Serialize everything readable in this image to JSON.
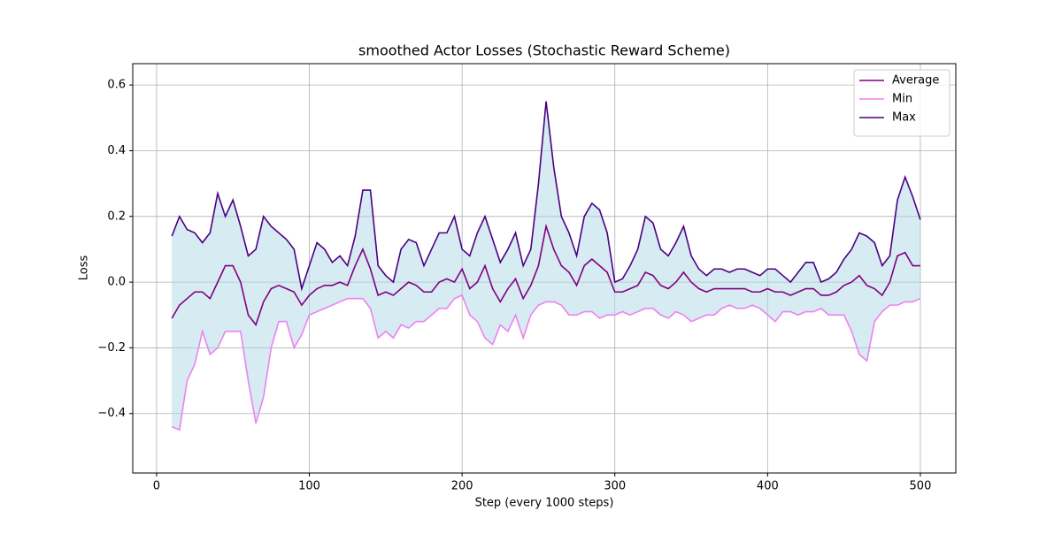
{
  "chart_data": {
    "type": "line",
    "title": "smoothed Actor Losses (Stochastic Reward Scheme)",
    "x_label": "Step (every 1000 steps)",
    "y_label": "Loss",
    "x": [
      10,
      15,
      20,
      25,
      30,
      35,
      40,
      45,
      50,
      55,
      60,
      65,
      70,
      75,
      80,
      85,
      90,
      95,
      100,
      105,
      110,
      115,
      120,
      125,
      130,
      135,
      140,
      145,
      150,
      155,
      160,
      165,
      170,
      175,
      180,
      185,
      190,
      195,
      200,
      205,
      210,
      215,
      220,
      225,
      230,
      235,
      240,
      245,
      250,
      255,
      260,
      265,
      270,
      275,
      280,
      285,
      290,
      295,
      300,
      305,
      310,
      315,
      320,
      325,
      330,
      335,
      340,
      345,
      350,
      355,
      360,
      365,
      370,
      375,
      380,
      385,
      390,
      395,
      400,
      405,
      410,
      415,
      420,
      425,
      430,
      435,
      440,
      445,
      450,
      455,
      460,
      465,
      470,
      475,
      480,
      485,
      490,
      495,
      500
    ],
    "series": [
      {
        "name": "Average",
        "color": "#800080",
        "values": [
          -0.11,
          -0.07,
          -0.05,
          -0.03,
          -0.03,
          -0.05,
          0.0,
          0.05,
          0.05,
          0.0,
          -0.1,
          -0.13,
          -0.06,
          -0.02,
          -0.01,
          -0.02,
          -0.03,
          -0.07,
          -0.04,
          -0.02,
          -0.01,
          -0.01,
          0.0,
          -0.01,
          0.05,
          0.1,
          0.04,
          -0.04,
          -0.03,
          -0.04,
          -0.02,
          0.0,
          -0.01,
          -0.03,
          -0.03,
          0.0,
          0.01,
          0.0,
          0.04,
          -0.02,
          0.0,
          0.05,
          -0.02,
          -0.06,
          -0.02,
          0.01,
          -0.05,
          -0.01,
          0.05,
          0.17,
          0.1,
          0.05,
          0.03,
          -0.01,
          0.05,
          0.07,
          0.05,
          0.03,
          -0.03,
          -0.03,
          -0.02,
          -0.01,
          0.03,
          0.02,
          -0.01,
          -0.02,
          0.0,
          0.03,
          0.0,
          -0.02,
          -0.03,
          -0.02,
          -0.02,
          -0.02,
          -0.02,
          -0.02,
          -0.03,
          -0.03,
          -0.02,
          -0.03,
          -0.03,
          -0.04,
          -0.03,
          -0.02,
          -0.02,
          -0.04,
          -0.04,
          -0.03,
          -0.01,
          0.0,
          0.02,
          -0.01,
          -0.02,
          -0.04,
          0.0,
          0.08,
          0.09,
          0.05,
          0.05
        ]
      },
      {
        "name": "Min",
        "color": "#ee82ee",
        "values": [
          -0.44,
          -0.45,
          -0.3,
          -0.25,
          -0.15,
          -0.22,
          -0.2,
          -0.15,
          -0.15,
          -0.15,
          -0.3,
          -0.43,
          -0.35,
          -0.2,
          -0.12,
          -0.12,
          -0.2,
          -0.16,
          -0.1,
          -0.09,
          -0.08,
          -0.07,
          -0.06,
          -0.05,
          -0.05,
          -0.05,
          -0.08,
          -0.17,
          -0.15,
          -0.17,
          -0.13,
          -0.14,
          -0.12,
          -0.12,
          -0.1,
          -0.08,
          -0.08,
          -0.05,
          -0.04,
          -0.1,
          -0.12,
          -0.17,
          -0.19,
          -0.13,
          -0.15,
          -0.1,
          -0.17,
          -0.1,
          -0.07,
          -0.06,
          -0.06,
          -0.07,
          -0.1,
          -0.1,
          -0.09,
          -0.09,
          -0.11,
          -0.1,
          -0.1,
          -0.09,
          -0.1,
          -0.09,
          -0.08,
          -0.08,
          -0.1,
          -0.11,
          -0.09,
          -0.1,
          -0.12,
          -0.11,
          -0.1,
          -0.1,
          -0.08,
          -0.07,
          -0.08,
          -0.08,
          -0.07,
          -0.08,
          -0.1,
          -0.12,
          -0.09,
          -0.09,
          -0.1,
          -0.09,
          -0.09,
          -0.08,
          -0.1,
          -0.1,
          -0.1,
          -0.15,
          -0.22,
          -0.24,
          -0.12,
          -0.09,
          -0.07,
          -0.07,
          -0.06,
          -0.06,
          -0.05
        ]
      },
      {
        "name": "Max",
        "color": "#4b0082",
        "values": [
          0.14,
          0.2,
          0.16,
          0.15,
          0.12,
          0.15,
          0.27,
          0.2,
          0.25,
          0.17,
          0.08,
          0.1,
          0.2,
          0.17,
          0.15,
          0.13,
          0.1,
          -0.02,
          0.05,
          0.12,
          0.1,
          0.06,
          0.08,
          0.05,
          0.14,
          0.28,
          0.28,
          0.05,
          0.02,
          0.0,
          0.1,
          0.13,
          0.12,
          0.05,
          0.1,
          0.15,
          0.15,
          0.2,
          0.1,
          0.08,
          0.15,
          0.2,
          0.13,
          0.06,
          0.1,
          0.15,
          0.05,
          0.1,
          0.3,
          0.55,
          0.35,
          0.2,
          0.15,
          0.08,
          0.2,
          0.24,
          0.22,
          0.15,
          0.0,
          0.01,
          0.05,
          0.1,
          0.2,
          0.18,
          0.1,
          0.08,
          0.12,
          0.17,
          0.08,
          0.04,
          0.02,
          0.04,
          0.04,
          0.03,
          0.04,
          0.04,
          0.03,
          0.02,
          0.04,
          0.04,
          0.02,
          0.0,
          0.03,
          0.06,
          0.06,
          0.0,
          0.01,
          0.03,
          0.07,
          0.1,
          0.15,
          0.14,
          0.12,
          0.05,
          0.08,
          0.25,
          0.32,
          0.26,
          0.19
        ]
      }
    ],
    "fill_color": "#add8e6",
    "xlim": [
      -15.6,
      523.2
    ],
    "ylim": [
      -0.581,
      0.665
    ],
    "xticks": [
      0,
      100,
      200,
      300,
      400,
      500
    ],
    "yticks": [
      {
        "value": -0.4,
        "label": "−0.4"
      },
      {
        "value": -0.2,
        "label": "−0.2"
      },
      {
        "value": 0,
        "label": "0.0"
      },
      0.2,
      0.4,
      0.6
    ],
    "grid": true,
    "legend": "upper right"
  }
}
